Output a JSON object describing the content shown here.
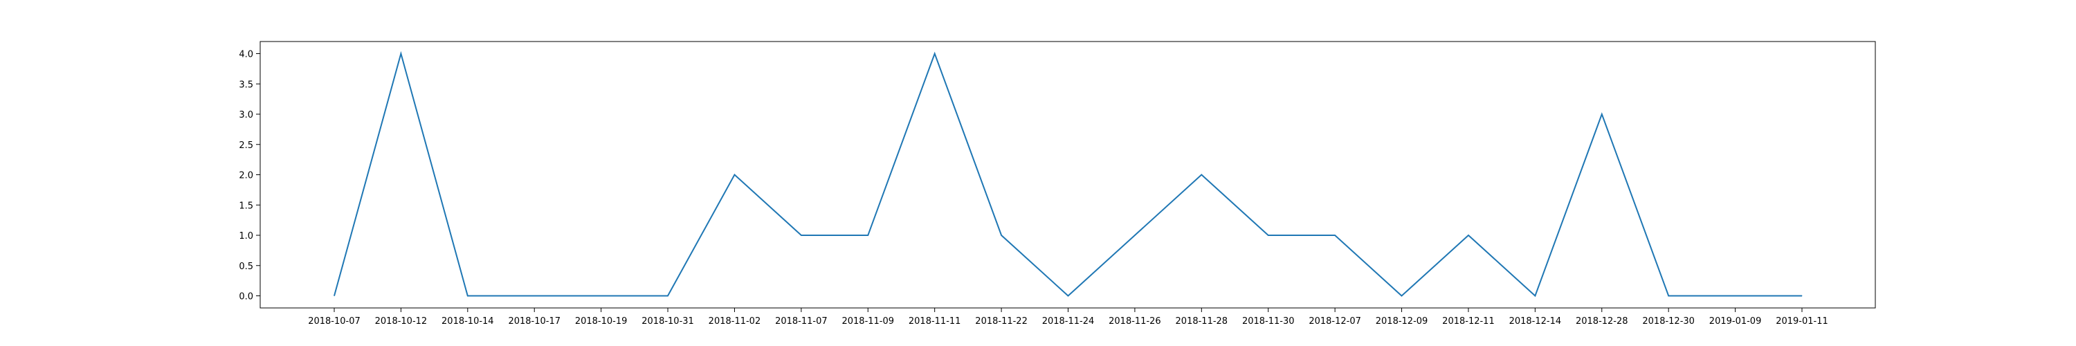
{
  "chart_data": {
    "type": "line",
    "categories": [
      "2018-10-07",
      "2018-10-12",
      "2018-10-14",
      "2018-10-17",
      "2018-10-19",
      "2018-10-31",
      "2018-11-02",
      "2018-11-07",
      "2018-11-09",
      "2018-11-11",
      "2018-11-22",
      "2018-11-24",
      "2018-11-26",
      "2018-11-28",
      "2018-11-30",
      "2018-12-07",
      "2018-12-09",
      "2018-12-11",
      "2018-12-14",
      "2018-12-28",
      "2018-12-30",
      "2019-01-09",
      "2019-01-11"
    ],
    "series": [
      {
        "values": [
          0,
          4,
          0,
          0,
          0,
          0,
          2,
          1,
          1,
          4,
          1,
          0,
          1,
          2,
          1,
          1,
          0,
          1,
          0,
          3,
          0,
          0,
          0
        ],
        "color": "#1f77b4"
      }
    ],
    "yticks": [
      "0.0",
      "0.5",
      "1.0",
      "1.5",
      "2.0",
      "2.5",
      "3.0",
      "3.5",
      "4.0"
    ],
    "ylim": [
      -0.2,
      4.2
    ],
    "title": "",
    "xlabel": "",
    "ylabel": "",
    "grid": false,
    "legend": "none"
  }
}
